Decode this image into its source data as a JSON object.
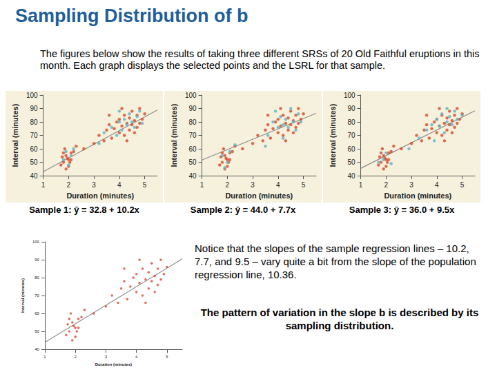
{
  "title": "Sampling Distribution of b",
  "intro": "The figures below show the results of taking three different SRSs of 20 Old Faithful eruptions in this month. Each graph displays the selected points and the LSRL for that sample.",
  "note": "Notice that the slopes of the sample regression lines – 10.2, 7.7, and 9.5 – vary quite a bit from the slope of the population regression line, 10.36.",
  "conclusion": "The pattern of variation in the slope b is described by its sampling distribution.",
  "chart_data": [
    {
      "type": "scatter",
      "caption": "Sample 1: ŷ = 32.8 + 10.2x",
      "x_label": "Duration (minutes)",
      "y_label": "Interval (minutes)",
      "xlim": [
        1,
        5.5
      ],
      "xticks": [
        1,
        2,
        3,
        4,
        5
      ],
      "ylim": [
        40,
        100
      ],
      "yticks": [
        40,
        50,
        60,
        70,
        80,
        90,
        100
      ],
      "grid": false,
      "series": [
        {
          "color": "#d9472b",
          "x": [
            1.8,
            1.9,
            2.0,
            1.7,
            2.1,
            1.85,
            2.0,
            1.95,
            2.2,
            1.75,
            2.05,
            1.9,
            2.3,
            1.8,
            2.1,
            2.6,
            3.2,
            3.4,
            3.5,
            3.6,
            3.7,
            3.8,
            3.9,
            4.0,
            4.0,
            4.1,
            4.2,
            4.2,
            4.3,
            4.4,
            4.4,
            4.5,
            4.5,
            4.6,
            4.7,
            4.7,
            4.8,
            4.9,
            3.0,
            4.1,
            4.3,
            3.6,
            4.6,
            4.8,
            5.0
          ],
          "values": [
            50,
            55,
            52,
            48,
            57,
            60,
            47,
            53,
            58,
            54,
            50,
            45,
            62,
            57,
            52,
            60,
            70,
            66,
            74,
            78,
            68,
            75,
            80,
            72,
            82,
            77,
            85,
            70,
            79,
            83,
            74,
            88,
            78,
            81,
            85,
            76,
            90,
            82,
            64,
            90,
            66,
            85,
            72,
            79,
            86
          ]
        },
        {
          "color": "#5ab4c8",
          "x": [
            1.8,
            2.0,
            1.9,
            2.1,
            3.4,
            3.7,
            3.9,
            4.0,
            4.1,
            4.2,
            4.3,
            4.4,
            4.5,
            4.6,
            4.7,
            4.8,
            3.2,
            4.9,
            2.2,
            4.0
          ],
          "values": [
            52,
            48,
            58,
            55,
            72,
            76,
            70,
            80,
            74,
            82,
            78,
            86,
            80,
            76,
            84,
            88,
            64,
            79,
            60,
            88
          ]
        },
        {
          "type": "line",
          "color": "#8c8c8c",
          "x": [
            1,
            5.5
          ],
          "values": [
            43.0,
            88.9
          ]
        }
      ]
    },
    {
      "type": "scatter",
      "caption": "Sample 2: ŷ = 44.0 + 7.7x",
      "x_label": "Duration (minutes)",
      "y_label": "Interval (minutes)",
      "xlim": [
        1,
        5.5
      ],
      "xticks": [
        1,
        2,
        3,
        4,
        5
      ],
      "ylim": [
        40,
        100
      ],
      "yticks": [
        40,
        50,
        60,
        70,
        80,
        90,
        100
      ],
      "grid": false,
      "series": [
        {
          "color": "#d9472b",
          "x": [
            1.8,
            1.9,
            2.0,
            1.7,
            2.1,
            1.85,
            2.0,
            1.95,
            2.2,
            1.75,
            2.05,
            1.9,
            2.3,
            1.8,
            2.1,
            2.6,
            3.2,
            3.4,
            3.5,
            3.6,
            3.7,
            3.8,
            3.9,
            4.0,
            4.0,
            4.1,
            4.2,
            4.2,
            4.3,
            4.4,
            4.4,
            4.5,
            4.5,
            4.6,
            4.7,
            4.7,
            4.8,
            4.9,
            3.0,
            4.1,
            4.3,
            3.6,
            4.6,
            4.8,
            5.0
          ],
          "values": [
            50,
            55,
            52,
            48,
            57,
            60,
            47,
            53,
            58,
            54,
            50,
            45,
            62,
            57,
            52,
            60,
            70,
            66,
            74,
            78,
            68,
            75,
            80,
            72,
            82,
            77,
            85,
            70,
            79,
            83,
            74,
            88,
            78,
            81,
            85,
            76,
            90,
            82,
            64,
            90,
            66,
            85,
            72,
            79,
            86
          ]
        },
        {
          "color": "#5ab4c8",
          "x": [
            1.8,
            2.0,
            2.1,
            1.9,
            3.5,
            3.8,
            4.0,
            4.1,
            4.2,
            4.3,
            4.4,
            4.5,
            4.6,
            4.7,
            4.8,
            3.6,
            3.9,
            4.2,
            2.3,
            4.9
          ],
          "values": [
            55,
            50,
            58,
            46,
            62,
            80,
            76,
            84,
            68,
            82,
            76,
            90,
            80,
            74,
            86,
            70,
            88,
            78,
            63,
            80
          ]
        },
        {
          "type": "line",
          "color": "#8c8c8c",
          "x": [
            1,
            5.5
          ],
          "values": [
            51.7,
            86.4
          ]
        }
      ]
    },
    {
      "type": "scatter",
      "caption": "Sample 3: ŷ = 36.0 + 9.5x",
      "x_label": "Duration (minutes)",
      "y_label": "Interval (minutes)",
      "xlim": [
        1,
        5.5
      ],
      "xticks": [
        1,
        2,
        3,
        4,
        5
      ],
      "ylim": [
        40,
        100
      ],
      "yticks": [
        40,
        50,
        60,
        70,
        80,
        90,
        100
      ],
      "grid": false,
      "series": [
        {
          "color": "#d9472b",
          "x": [
            1.8,
            1.9,
            2.0,
            1.7,
            2.1,
            1.85,
            2.0,
            1.95,
            2.2,
            1.75,
            2.05,
            1.9,
            2.3,
            1.8,
            2.1,
            2.6,
            3.2,
            3.4,
            3.5,
            3.6,
            3.7,
            3.8,
            3.9,
            4.0,
            4.0,
            4.1,
            4.2,
            4.2,
            4.3,
            4.4,
            4.4,
            4.5,
            4.5,
            4.6,
            4.7,
            4.7,
            4.8,
            4.9,
            3.0,
            4.1,
            4.3,
            3.6,
            4.6,
            4.8,
            5.0
          ],
          "values": [
            50,
            55,
            52,
            48,
            57,
            60,
            47,
            53,
            58,
            54,
            50,
            45,
            62,
            57,
            52,
            60,
            70,
            66,
            74,
            78,
            68,
            75,
            80,
            72,
            82,
            77,
            85,
            70,
            79,
            83,
            74,
            88,
            78,
            81,
            85,
            76,
            90,
            82,
            64,
            90,
            66,
            85,
            72,
            79,
            86
          ]
        },
        {
          "color": "#5ab4c8",
          "x": [
            1.7,
            1.9,
            2.0,
            2.2,
            3.3,
            3.6,
            3.8,
            3.9,
            4.0,
            4.1,
            4.2,
            4.3,
            4.4,
            4.5,
            4.6,
            4.7,
            4.8,
            2.9,
            4.4,
            5.0
          ],
          "values": [
            50,
            52,
            57,
            49,
            68,
            74,
            78,
            66,
            82,
            77,
            86,
            72,
            80,
            84,
            78,
            88,
            82,
            60,
            90,
            85
          ]
        },
        {
          "type": "line",
          "color": "#8c8c8c",
          "x": [
            1,
            5.5
          ],
          "values": [
            45.5,
            88.3
          ]
        }
      ]
    },
    {
      "type": "scatter",
      "x_label": "Duration (minutes)",
      "y_label": "Interval (minutes)",
      "xlim": [
        1,
        5.5
      ],
      "xticks": [
        1,
        2,
        3,
        4,
        5
      ],
      "ylim": [
        40,
        100
      ],
      "yticks": [
        40,
        50,
        60,
        70,
        80,
        90,
        100
      ],
      "grid": false,
      "series": [
        {
          "color": "#d9472b",
          "x": [
            1.8,
            1.9,
            2.0,
            1.7,
            2.1,
            1.85,
            2.0,
            1.95,
            2.2,
            1.75,
            2.05,
            1.9,
            2.3,
            1.8,
            2.1,
            2.6,
            3.2,
            3.4,
            3.5,
            3.6,
            3.7,
            3.8,
            3.9,
            4.0,
            4.0,
            4.1,
            4.2,
            4.2,
            4.3,
            4.4,
            4.4,
            4.5,
            4.5,
            4.6,
            4.7,
            4.7,
            4.8,
            4.9,
            3.0,
            4.1,
            4.3,
            3.6,
            4.6,
            4.8,
            5.0
          ],
          "values": [
            50,
            55,
            52,
            48,
            57,
            60,
            47,
            53,
            58,
            54,
            50,
            45,
            62,
            57,
            52,
            60,
            70,
            66,
            74,
            78,
            68,
            75,
            80,
            72,
            82,
            77,
            85,
            70,
            79,
            83,
            74,
            88,
            78,
            81,
            85,
            76,
            90,
            82,
            64,
            90,
            66,
            85,
            72,
            79,
            86
          ]
        },
        {
          "type": "line",
          "color": "#8c8c8c",
          "x": [
            1,
            5.5
          ],
          "values": [
            43.9,
            90.5
          ]
        }
      ]
    }
  ]
}
